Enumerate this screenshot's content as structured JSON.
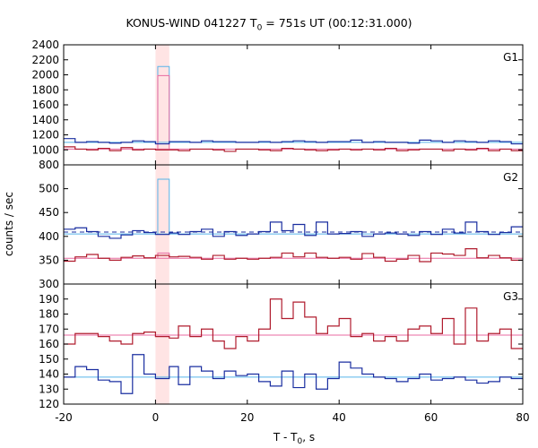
{
  "title": {
    "prefix": "KONUS-WIND 041227 T",
    "sub": "0",
    "suffix": " = 751s UT (00:12:31.000)"
  },
  "xlabel": {
    "prefix": "T - T",
    "sub": "0",
    "suffix": ", s"
  },
  "ylabel": "counts / sec",
  "colors": {
    "red_series": "#b01c2e",
    "blue_series": "#1a2ea0",
    "cyan_line": "#56b4e9",
    "pink_line": "#e86aa0",
    "highlight_band": "#ffd6d6"
  },
  "chart_data": {
    "type": "line",
    "step": true,
    "xlim": [
      -20,
      80
    ],
    "xticks": [
      "-20",
      "0",
      "20",
      "40",
      "60",
      "80"
    ],
    "xtick_values": [
      -20,
      0,
      20,
      40,
      60,
      80
    ],
    "highlight_band": [
      0,
      3
    ],
    "panels": [
      {
        "label": "G1",
        "ylim": [
          800,
          2400
        ],
        "yticks": [
          "800",
          "1000",
          "1200",
          "1400",
          "1600",
          "1800",
          "2000",
          "2200",
          "2400"
        ],
        "ytick_values": [
          800,
          1000,
          1200,
          1400,
          1600,
          1800,
          2000,
          2200,
          2400
        ],
        "bin_edges": [
          -20,
          -17.5,
          -15,
          -12.5,
          -10,
          -7.5,
          -5,
          -2.5,
          0,
          3,
          5,
          7.5,
          10,
          12.5,
          15,
          17.5,
          20,
          22.5,
          25,
          27.5,
          30,
          32.5,
          35,
          37.5,
          40,
          42.5,
          45,
          47.5,
          50,
          52.5,
          55,
          57.5,
          60,
          62.5,
          65,
          67.5,
          70,
          72.5,
          75,
          77.5,
          80
        ],
        "series": [
          {
            "color_key": "blue_series",
            "values": [
              1150,
              1100,
              1110,
              1100,
              1090,
              1100,
              1120,
              1110,
              1080,
              1110,
              1110,
              1100,
              1120,
              1110,
              1110,
              1100,
              1100,
              1110,
              1100,
              1110,
              1120,
              1110,
              1100,
              1110,
              1110,
              1130,
              1100,
              1110,
              1100,
              1100,
              1090,
              1130,
              1120,
              1100,
              1120,
              1110,
              1100,
              1120,
              1110,
              1080
            ]
          },
          {
            "color_key": "red_series",
            "values": [
              1040,
              1010,
              1000,
              1020,
              990,
              1030,
              1000,
              1010,
              1000,
              1000,
              990,
              1010,
              1010,
              1000,
              980,
              1010,
              1010,
              1000,
              990,
              1020,
              1010,
              1000,
              990,
              1000,
              1010,
              1000,
              1010,
              1000,
              1020,
              990,
              1000,
              1010,
              1010,
              990,
              1010,
              1000,
              1020,
              990,
              1010,
              990
            ]
          }
        ],
        "spike": {
          "x": [
            0.5,
            3
          ],
          "cyan_value": 2110,
          "pink_value": 1990
        },
        "levels": [
          {
            "color_key": "cyan_line",
            "value": 1100
          },
          {
            "color_key": "pink_line",
            "value": 1010
          }
        ]
      },
      {
        "label": "G2",
        "ylim": [
          300,
          550
        ],
        "yticks": [
          "300",
          "350",
          "400",
          "450",
          "500"
        ],
        "ytick_values": [
          300,
          350,
          400,
          450,
          500
        ],
        "bin_edges": [
          -20,
          -17.5,
          -15,
          -12.5,
          -10,
          -7.5,
          -5,
          -2.5,
          0,
          3,
          5,
          7.5,
          10,
          12.5,
          15,
          17.5,
          20,
          22.5,
          25,
          27.5,
          30,
          32.5,
          35,
          37.5,
          40,
          42.5,
          45,
          47.5,
          50,
          52.5,
          55,
          57.5,
          60,
          62.5,
          65,
          67.5,
          70,
          72.5,
          75,
          77.5,
          80
        ],
        "series": [
          {
            "color_key": "blue_series",
            "values": [
              415,
              418,
              410,
              400,
              396,
              403,
              412,
              408,
              404,
              407,
              404,
              410,
              415,
              400,
              410,
              402,
              405,
              410,
              430,
              412,
              425,
              402,
              430,
              405,
              406,
              410,
              400,
              405,
              407,
              405,
              402,
              410,
              404,
              415,
              407,
              430,
              410,
              404,
              408,
              420
            ]
          },
          {
            "color_key": "red_series",
            "values": [
              348,
              357,
              362,
              354,
              350,
              356,
              359,
              355,
              360,
              357,
              358,
              356,
              352,
              360,
              352,
              354,
              352,
              354,
              356,
              365,
              357,
              365,
              356,
              354,
              356,
              352,
              364,
              356,
              348,
              352,
              360,
              347,
              365,
              363,
              360,
              374,
              355,
              360,
              355,
              350
            ]
          }
        ],
        "spike": {
          "x": [
            0.5,
            3
          ],
          "cyan_value": 520,
          "pink_value": 365
        },
        "levels": [
          {
            "color_key": "cyan_line",
            "value": 405
          },
          {
            "color_key": "pink_line",
            "value": 354
          }
        ],
        "dashed_level": {
          "color_key": "blue_series",
          "value": 409
        }
      },
      {
        "label": "G3",
        "ylim": [
          120,
          200
        ],
        "yticks": [
          "120",
          "130",
          "140",
          "150",
          "160",
          "170",
          "180",
          "190"
        ],
        "ytick_values": [
          120,
          130,
          140,
          150,
          160,
          170,
          180,
          190
        ],
        "bin_edges": [
          -20,
          -17.5,
          -15,
          -12.5,
          -10,
          -7.5,
          -5,
          -2.5,
          0,
          3,
          5,
          7.5,
          10,
          12.5,
          15,
          17.5,
          20,
          22.5,
          25,
          27.5,
          30,
          32.5,
          35,
          37.5,
          40,
          42.5,
          45,
          47.5,
          50,
          52.5,
          55,
          57.5,
          60,
          62.5,
          65,
          67.5,
          70,
          72.5,
          75,
          77.5,
          80
        ],
        "series": [
          {
            "color_key": "red_series",
            "values": [
              160,
              167,
              167,
              165,
              162,
              160,
              167,
              168,
              165,
              164,
              172,
              165,
              170,
              162,
              157,
              165,
              162,
              170,
              190,
              177,
              188,
              178,
              167,
              172,
              177,
              165,
              167,
              162,
              165,
              162,
              170,
              172,
              167,
              177,
              160,
              184,
              162,
              167,
              170,
              157
            ]
          },
          {
            "color_key": "blue_series",
            "values": [
              138,
              145,
              143,
              136,
              135,
              127,
              153,
              140,
              137,
              145,
              133,
              145,
              142,
              137,
              142,
              139,
              140,
              135,
              132,
              142,
              131,
              140,
              130,
              137,
              148,
              144,
              140,
              138,
              137,
              135,
              137,
              140,
              136,
              137,
              138,
              136,
              134,
              135,
              138,
              137
            ]
          }
        ],
        "levels": [
          {
            "color_key": "cyan_line",
            "value": 138
          },
          {
            "color_key": "pink_line",
            "value": 166
          }
        ]
      }
    ]
  }
}
